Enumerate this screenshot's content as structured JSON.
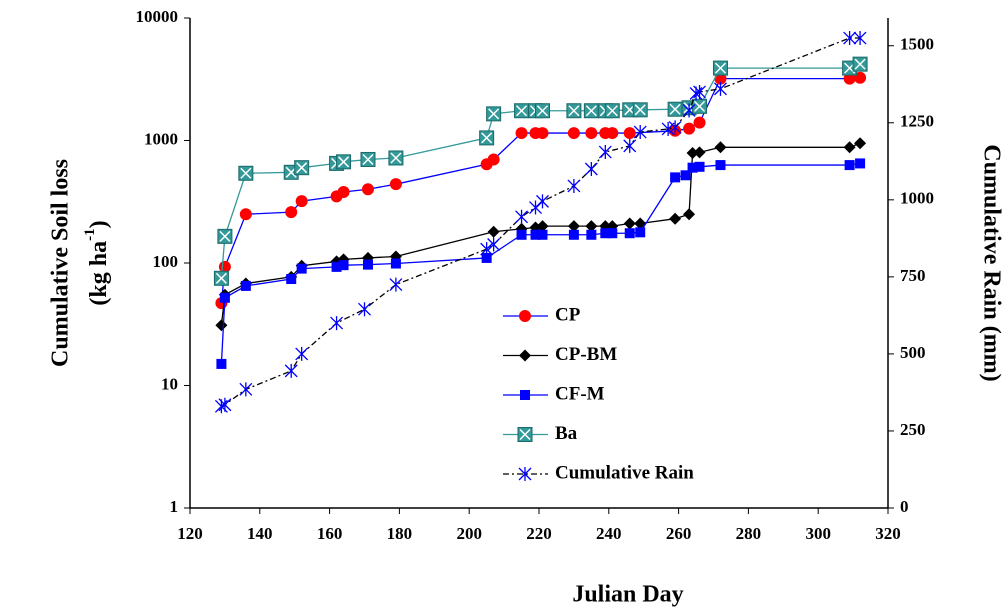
{
  "chart_data": {
    "type": "line",
    "xlabel": "Julian Day",
    "ylabel": "Cumulative Soil loss",
    "ylabel_unit": "(kg ha",
    "ylabel_sup": "-1",
    "ylabel_close": ")",
    "y2label": "Cumulative Rain (mm)",
    "xlim": [
      120,
      320
    ],
    "xticks": [
      120,
      140,
      160,
      180,
      200,
      220,
      240,
      260,
      280,
      300,
      320
    ],
    "ylim": [
      1,
      10000
    ],
    "yticks": [
      1,
      10,
      100,
      1000,
      10000
    ],
    "log_y": true,
    "y2lim": [
      0,
      1590
    ],
    "y2ticks": [
      0,
      250,
      500,
      750,
      1000,
      1250,
      1500
    ],
    "legend": "center",
    "series": [
      {
        "name": "CP",
        "marker": "circle",
        "color": "#ff0000",
        "line_color": "#0000ff",
        "dash": false,
        "x": [
          129,
          130,
          136,
          149,
          152,
          162,
          164,
          171,
          179,
          205,
          207,
          215,
          219,
          221,
          230,
          235,
          239,
          241,
          246,
          259,
          263,
          266,
          272,
          309,
          312
        ],
        "values": [
          47,
          93,
          250,
          260,
          320,
          350,
          380,
          400,
          440,
          640,
          700,
          1150,
          1150,
          1150,
          1150,
          1150,
          1150,
          1150,
          1150,
          1200,
          1250,
          1400,
          3200,
          3200,
          3250
        ]
      },
      {
        "name": "CP-BM",
        "marker": "diamond",
        "color": "#000000",
        "line_color": "#000000",
        "dash": false,
        "x": [
          129,
          130,
          136,
          149,
          152,
          162,
          164,
          171,
          179,
          207,
          215,
          219,
          221,
          230,
          235,
          239,
          241,
          246,
          249,
          259,
          263,
          264,
          266,
          272,
          309,
          312
        ],
        "values": [
          31,
          55,
          68,
          77,
          95,
          103,
          107,
          110,
          113,
          180,
          190,
          195,
          200,
          200,
          200,
          200,
          200,
          210,
          210,
          230,
          250,
          790,
          800,
          880,
          880,
          950
        ]
      },
      {
        "name": "CF-M",
        "marker": "square",
        "color": "#0000ff",
        "line_color": "#0000ff",
        "dash": false,
        "x": [
          129,
          130,
          136,
          149,
          152,
          162,
          164,
          171,
          179,
          205,
          215,
          219,
          221,
          230,
          235,
          239,
          241,
          246,
          249,
          259,
          262,
          264,
          266,
          272,
          309,
          312
        ],
        "values": [
          15,
          52,
          65,
          74,
          90,
          93,
          96,
          97,
          99,
          110,
          170,
          170,
          170,
          170,
          170,
          175,
          175,
          175,
          178,
          500,
          520,
          600,
          610,
          630,
          630,
          650
        ]
      },
      {
        "name": "Ba",
        "marker": "xsquare",
        "color": "#339999",
        "line_color": "#339999",
        "dash": false,
        "x": [
          129,
          130,
          136,
          149,
          152,
          162,
          164,
          171,
          179,
          205,
          207,
          215,
          219,
          221,
          230,
          235,
          239,
          241,
          246,
          249,
          259,
          263,
          266,
          272,
          309,
          312
        ],
        "values": [
          75,
          165,
          540,
          550,
          600,
          650,
          670,
          700,
          720,
          1050,
          1650,
          1750,
          1750,
          1750,
          1750,
          1750,
          1750,
          1750,
          1780,
          1780,
          1800,
          1850,
          1900,
          3900,
          3900,
          4200
        ]
      },
      {
        "name": "Cumulative Rain",
        "marker": "asterisk",
        "color": "#0000ff",
        "line_color": "#000000",
        "dash": true,
        "axis": "y2",
        "x": [
          129,
          130,
          136,
          149,
          152,
          162,
          170,
          179,
          205,
          207,
          215,
          219,
          221,
          230,
          235,
          239,
          246,
          249,
          257,
          259,
          263,
          265,
          266,
          272,
          309,
          312
        ],
        "values": [
          330,
          335,
          385,
          445,
          500,
          600,
          645,
          725,
          840,
          855,
          945,
          975,
          995,
          1045,
          1100,
          1155,
          1175,
          1220,
          1230,
          1235,
          1290,
          1345,
          1350,
          1360,
          1525,
          1525
        ]
      }
    ]
  }
}
